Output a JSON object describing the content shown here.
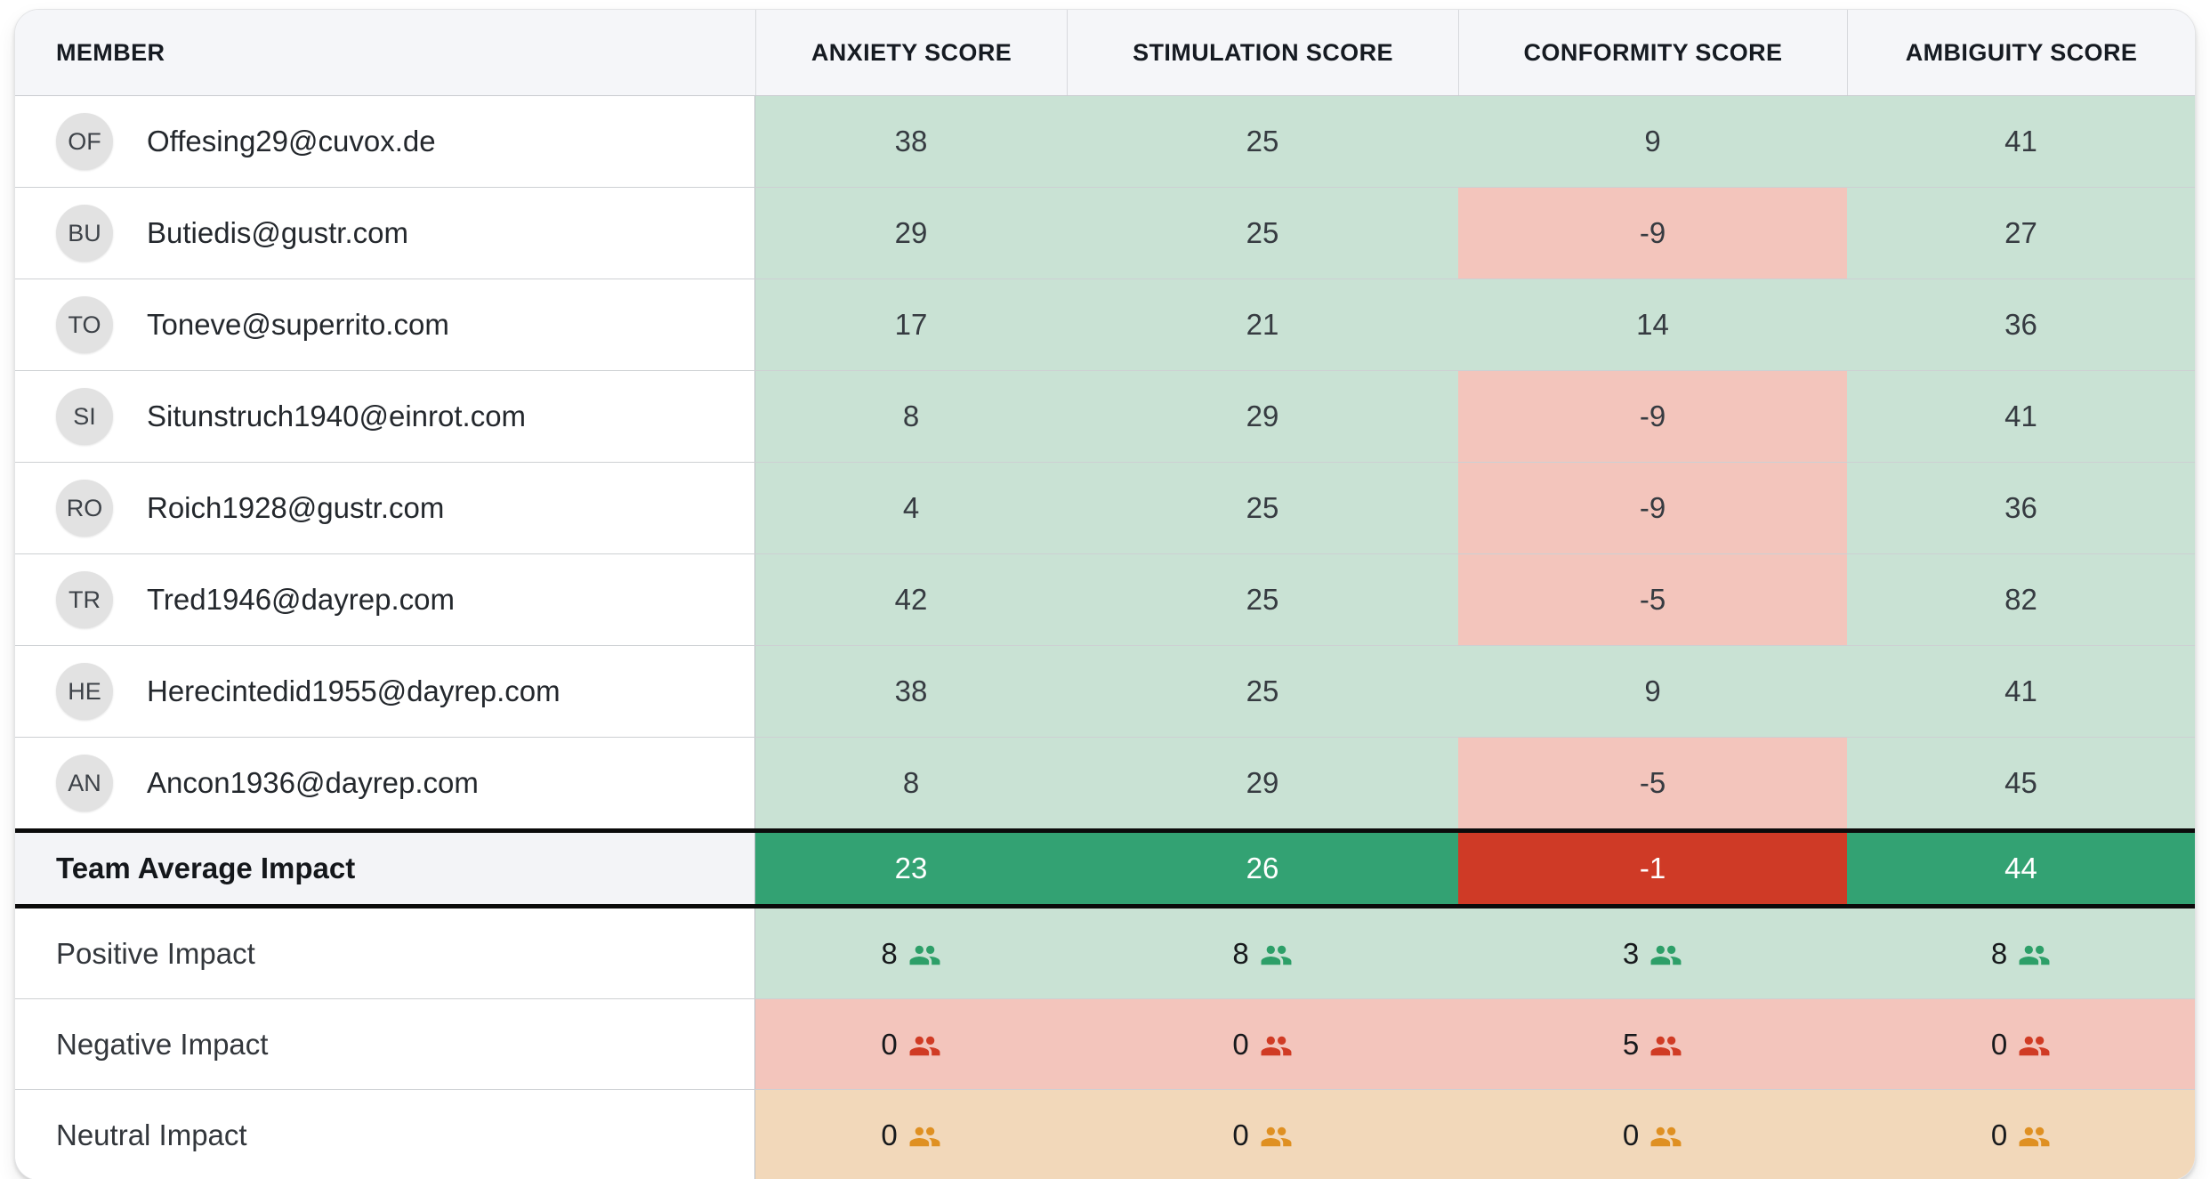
{
  "table": {
    "columns": [
      {
        "key": "member",
        "label": "MEMBER"
      },
      {
        "key": "anxiety",
        "label": "ANXIETY SCORE"
      },
      {
        "key": "stimulation",
        "label": "STIMULATION SCORE"
      },
      {
        "key": "conformity",
        "label": "CONFORMITY SCORE"
      },
      {
        "key": "ambiguity",
        "label": "AMBIGUITY SCORE"
      }
    ],
    "members": [
      {
        "initials": "OF",
        "email": "Offesing29@cuvox.de",
        "scores": [
          38,
          25,
          9,
          41
        ]
      },
      {
        "initials": "BU",
        "email": "Butiedis@gustr.com",
        "scores": [
          29,
          25,
          -9,
          27
        ]
      },
      {
        "initials": "TO",
        "email": "Toneve@superrito.com",
        "scores": [
          17,
          21,
          14,
          36
        ]
      },
      {
        "initials": "SI",
        "email": "Situnstruch1940@einrot.com",
        "scores": [
          8,
          29,
          -9,
          41
        ]
      },
      {
        "initials": "RO",
        "email": "Roich1928@gustr.com",
        "scores": [
          4,
          25,
          -9,
          36
        ]
      },
      {
        "initials": "TR",
        "email": "Tred1946@dayrep.com",
        "scores": [
          42,
          25,
          -5,
          82
        ]
      },
      {
        "initials": "HE",
        "email": "Herecintedid1955@dayrep.com",
        "scores": [
          38,
          25,
          9,
          41
        ]
      },
      {
        "initials": "AN",
        "email": "Ancon1936@dayrep.com",
        "scores": [
          8,
          29,
          -5,
          45
        ]
      }
    ],
    "summary": {
      "team_average": {
        "label": "Team Average Impact",
        "values": [
          23,
          26,
          -1,
          44
        ]
      },
      "impacts": [
        {
          "kind": "positive",
          "label": "Positive Impact",
          "values": [
            8,
            8,
            3,
            8
          ]
        },
        {
          "kind": "negative",
          "label": "Negative Impact",
          "values": [
            0,
            0,
            5,
            0
          ]
        },
        {
          "kind": "neutral",
          "label": "Neutral Impact",
          "values": [
            0,
            0,
            0,
            0
          ]
        }
      ]
    },
    "icons": {
      "impact_icon": "people-icon"
    },
    "colors": {
      "positive_cell": "#c9e2d4",
      "negative_cell": "#f3c5bc",
      "neutral_cell": "#f2d8ba",
      "positive_strong": "#33a273",
      "negative_strong": "#cf3a26",
      "positive_icon": "#2d9f68",
      "negative_icon": "#d03b24",
      "neutral_icon": "#df9022",
      "header_bg": "#f5f6f9",
      "team_label_bg": "#f3f4f7"
    }
  }
}
